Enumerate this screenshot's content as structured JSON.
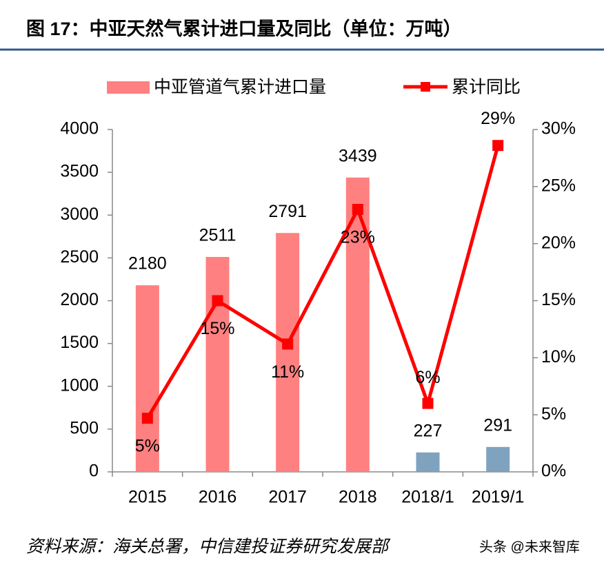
{
  "chart_data": {
    "type": "combo",
    "title": "图 17：中亚天然气累计进口量及同比（单位：万吨）",
    "source": "资料来源：海关总署，中信建投证券研究发展部",
    "watermark": "头条 @未来智库",
    "categories": [
      "2015",
      "2016",
      "2017",
      "2018",
      "2018/1",
      "2019/1"
    ],
    "series": [
      {
        "name": "中亚管道气累计进口量",
        "type": "bar",
        "color": "#ff8080",
        "colors": [
          "#ff8080",
          "#ff8080",
          "#ff8080",
          "#ff8080",
          "#7fa3bf",
          "#7fa3bf"
        ],
        "values": [
          2180,
          2511,
          2791,
          3439,
          227,
          291
        ]
      },
      {
        "name": "累计同比",
        "type": "line",
        "axis": "y2",
        "color": "#ff0000",
        "values": [
          4.7,
          15,
          11.2,
          23,
          6,
          28.6
        ],
        "value_labels": [
          "5%",
          "15%",
          "11%",
          "23%",
          "6%",
          "29%"
        ]
      }
    ],
    "ylim": [
      0,
      4000
    ],
    "yticks": [
      0,
      500,
      1000,
      1500,
      2000,
      2500,
      3000,
      3500,
      4000
    ],
    "y2lim": [
      0,
      30
    ],
    "y2ticks": [
      {
        "value": 0,
        "label": "0%"
      },
      {
        "value": 5,
        "label": "5%"
      },
      {
        "value": 10,
        "label": "10%"
      },
      {
        "value": 15,
        "label": "15%"
      },
      {
        "value": 20,
        "label": "20%"
      },
      {
        "value": 25,
        "label": "25%"
      },
      {
        "value": 30,
        "label": "30%"
      }
    ]
  }
}
